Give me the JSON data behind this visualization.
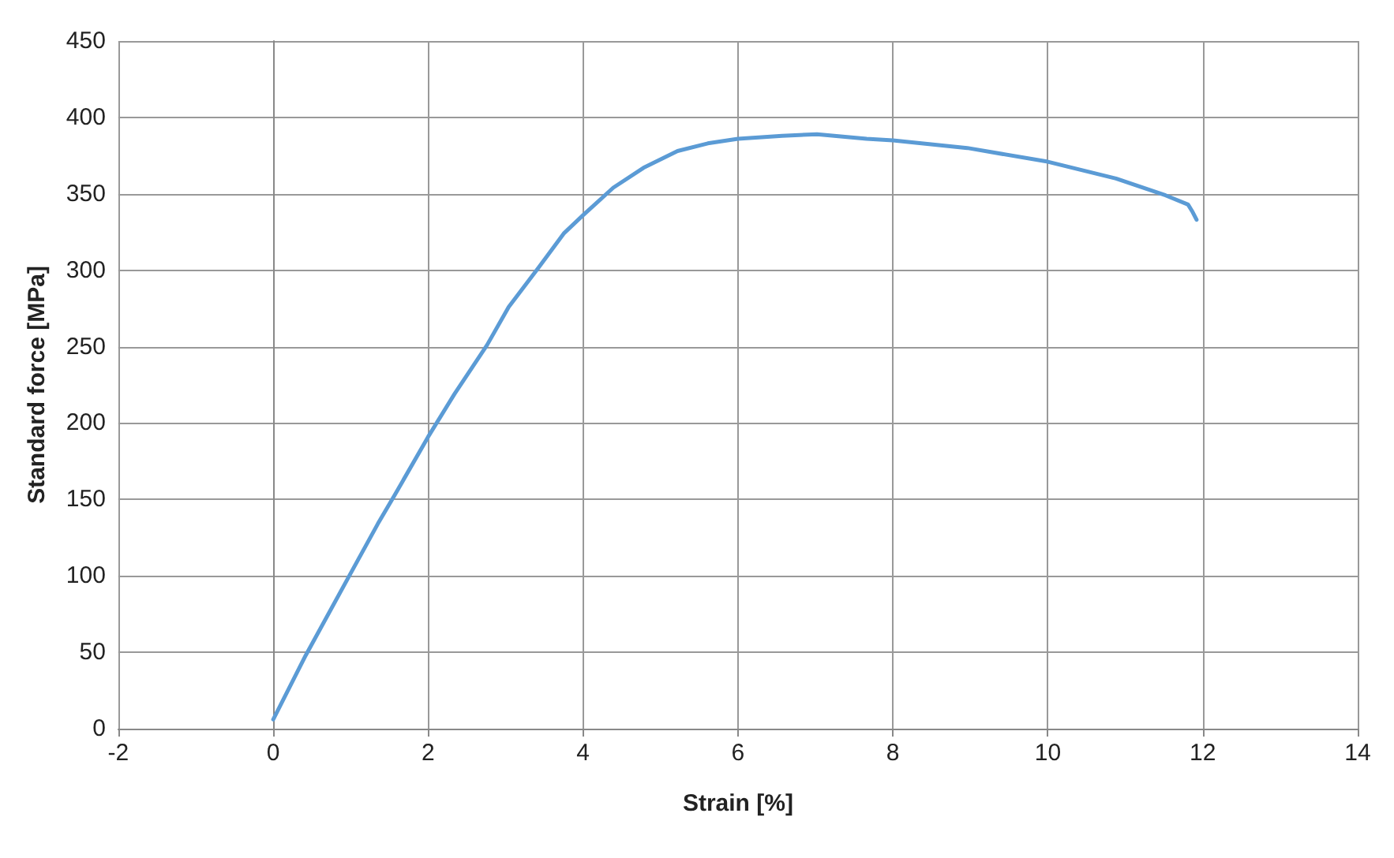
{
  "chart_data": {
    "type": "line",
    "xlabel": "Strain [%]",
    "ylabel": "Standard force [MPa]",
    "series": [
      {
        "color": "#5b9bd5",
        "x": [
          0,
          0.42,
          0.96,
          1.35,
          1.57,
          2.0,
          2.34,
          2.76,
          3.04,
          3.43,
          3.75,
          4.0,
          4.39,
          4.78,
          5.22,
          5.61,
          6.0,
          6.57,
          7.02,
          7.66,
          8.0,
          8.96,
          10.0,
          10.88,
          11.52,
          11.81,
          11.87,
          11.92
        ],
        "values": [
          6,
          48,
          98,
          134,
          153,
          191,
          219,
          251,
          276,
          302,
          324,
          336,
          354,
          367,
          378,
          383,
          386,
          388,
          389,
          386,
          385,
          380,
          371,
          360,
          349,
          343,
          338,
          333
        ]
      }
    ],
    "xlim": [
      -2,
      14
    ],
    "xticks": [
      -2,
      0,
      2,
      4,
      6,
      8,
      10,
      12,
      14
    ],
    "ylim": [
      0,
      450
    ],
    "yticks": [
      0,
      50,
      100,
      150,
      200,
      250,
      300,
      350,
      400,
      450
    ],
    "grid": true,
    "marker": "none",
    "line_style": "solid"
  }
}
